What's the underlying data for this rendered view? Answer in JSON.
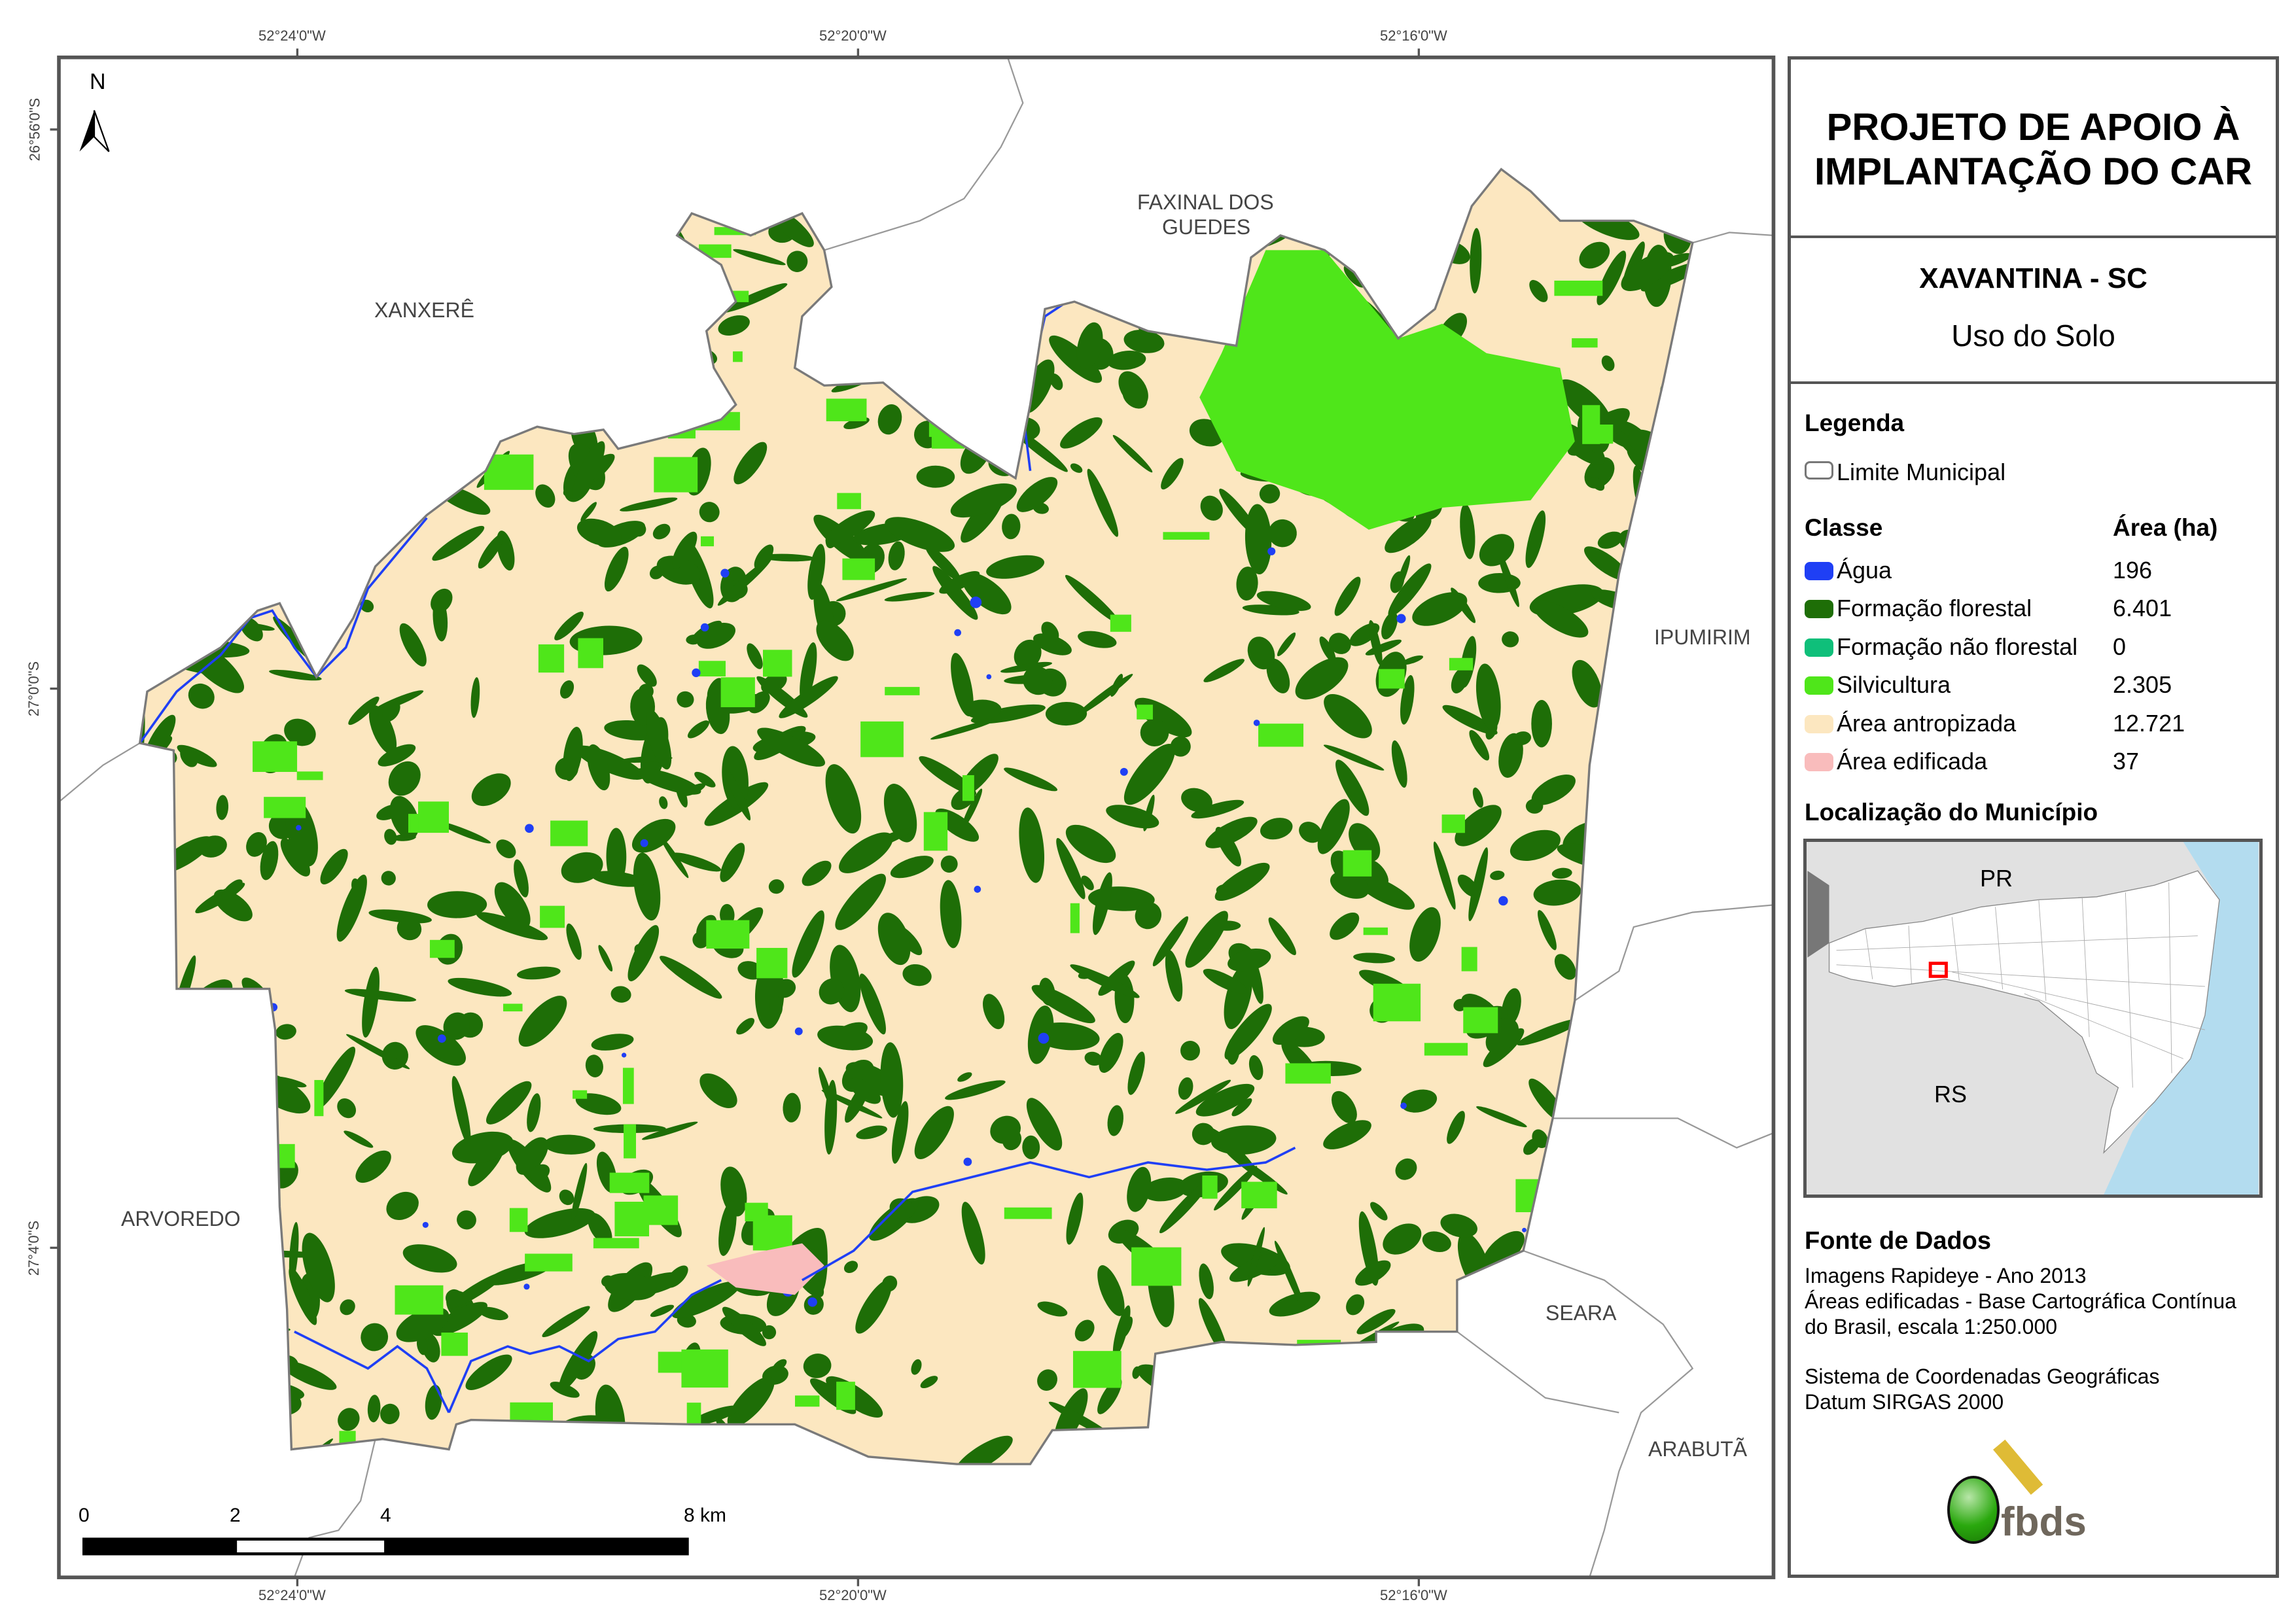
{
  "title": {
    "line1": "PROJETO DE APOIO À",
    "line2": "IMPLANTAÇÃO DO CAR"
  },
  "municipality": "XAVANTINA - SC",
  "theme": "Uso do Solo",
  "legend": {
    "heading": "Legenda",
    "boundary_label": "Limite Municipal",
    "class_header": "Classe",
    "area_header": "Área (ha)",
    "classes": [
      {
        "label": "Água",
        "area": "196",
        "color": "#1f3ff5"
      },
      {
        "label": "Formação florestal",
        "area": "6.401",
        "color": "#1e6e07"
      },
      {
        "label": "Formação não florestal",
        "area": "0",
        "color": "#0fbf7a"
      },
      {
        "label": "Silvicultura",
        "area": "2.305",
        "color": "#4fe61a"
      },
      {
        "label": "Área antropizada",
        "area": "12.721",
        "color": "#fce7c0"
      },
      {
        "label": "Área edificada",
        "area": "37",
        "color": "#f9bcbc"
      }
    ]
  },
  "location": {
    "heading": "Localização do Município",
    "labels": {
      "pr": "PR",
      "rs": "RS"
    }
  },
  "sources": {
    "heading": "Fonte de Dados",
    "lines": [
      "Imagens Rapideye - Ano 2013",
      "Áreas edificadas - Base Cartográfica Contínua",
      "do Brasil, escala 1:250.000"
    ],
    "crs": [
      "Sistema de Coordenadas Geográficas",
      "Datum SIRGAS 2000"
    ]
  },
  "logo_text": "fbds",
  "map": {
    "north_label": "N",
    "neighbors": {
      "xanxere": "XANXERÊ",
      "faxinal1": "FAXINAL DOS",
      "faxinal2": "GUEDES",
      "ipumirim": "IPUMIRIM",
      "arvoredo": "ARVOREDO",
      "seara": "SEARA",
      "arabuta": "ARABUTÃ"
    },
    "longitudes": [
      "52°24'0\"W",
      "52°20'0\"W",
      "52°16'0\"W"
    ],
    "latitudes": [
      "26°56'0\"S",
      "27°0'0\"S",
      "27°4'0\"S"
    ],
    "scale": {
      "ticks": [
        "0",
        "2",
        "4"
      ],
      "end": "8 km"
    }
  }
}
